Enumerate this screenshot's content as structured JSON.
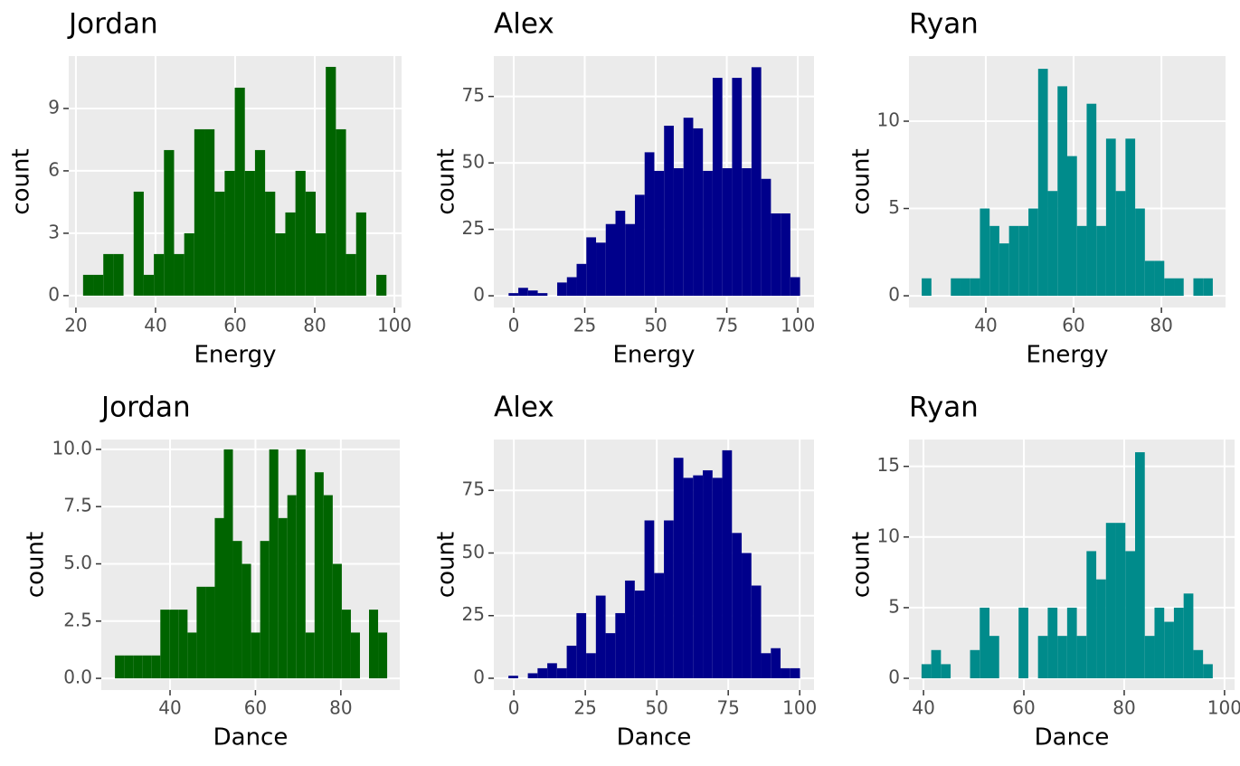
{
  "chart_data": [
    {
      "type": "histogram",
      "title": "Jordan",
      "x_label": "Energy",
      "y_label": "count",
      "color": "#006400",
      "grid": true,
      "bins": [
        21.8,
        24.34,
        26.88,
        29.42,
        31.96,
        34.5,
        37.04,
        39.58,
        42.12,
        44.66,
        47.2,
        49.74,
        52.28,
        54.82,
        57.36,
        59.9,
        62.44,
        64.98,
        67.52,
        70.06,
        72.6,
        75.14,
        77.68,
        80.22,
        82.76,
        85.3,
        87.84,
        90.38,
        92.92,
        95.46,
        98.0
      ],
      "counts": [
        1,
        1,
        2,
        2,
        0,
        5,
        1,
        2,
        7,
        2,
        3,
        8,
        8,
        5,
        6,
        10,
        6,
        7,
        5,
        3,
        4,
        6,
        5,
        3,
        11,
        8,
        2,
        4,
        0,
        1
      ],
      "xlim": [
        18.2,
        101.8
      ],
      "ylim": [
        -0.57,
        11.52
      ],
      "xticks": [
        20,
        40,
        60,
        80,
        100
      ],
      "yticks": [
        0,
        3,
        6,
        9
      ]
    },
    {
      "type": "histogram",
      "title": "Alex",
      "x_label": "Energy",
      "y_label": "count",
      "color": "#00008b",
      "grid": true,
      "bins": [
        -1.8,
        1.62,
        5.04,
        8.46,
        11.88,
        15.3,
        18.72,
        22.14,
        25.56,
        28.98,
        32.4,
        35.82,
        39.24,
        42.66,
        46.08,
        49.5,
        52.92,
        56.34,
        59.76,
        63.18,
        66.6,
        70.02,
        73.44,
        76.86,
        80.28,
        83.7,
        87.12,
        90.54,
        93.96,
        97.38,
        100.8
      ],
      "counts": [
        1,
        3,
        2,
        1,
        0,
        5,
        7,
        12,
        22,
        20,
        27,
        32,
        27,
        38,
        54,
        47,
        64,
        48,
        67,
        63,
        47,
        82,
        48,
        82,
        48,
        86,
        44,
        31,
        31,
        7
      ],
      "xlim": [
        -7,
        105.7
      ],
      "ylim": [
        -4.4,
        90.2
      ],
      "xticks": [
        0,
        25,
        50,
        75,
        100
      ],
      "yticks": [
        0,
        25,
        50,
        75
      ]
    },
    {
      "type": "histogram",
      "title": "Ryan",
      "x_label": "Energy",
      "y_label": "count",
      "color": "#008b8b",
      "grid": true,
      "bins": [
        25.4,
        27.61,
        29.82,
        32.03,
        34.24,
        36.45,
        38.66,
        40.87,
        43.08,
        45.29,
        47.5,
        49.71,
        51.92,
        54.13,
        56.34,
        58.55,
        60.76,
        62.97,
        65.18,
        67.39,
        69.6,
        71.81,
        74.02,
        76.23,
        78.44,
        80.65,
        82.86,
        85.07,
        87.28,
        89.49,
        91.7
      ],
      "counts": [
        1,
        0,
        0,
        1,
        1,
        1,
        5,
        4,
        3,
        4,
        4,
        5,
        13,
        6,
        12,
        8,
        4,
        11,
        4,
        9,
        6,
        9,
        5,
        2,
        2,
        1,
        1,
        0,
        1,
        1
      ],
      "xlim": [
        22.5,
        94.6
      ],
      "ylim": [
        -0.67,
        13.73
      ],
      "xticks": [
        40,
        60,
        80
      ],
      "yticks": [
        0,
        5,
        10
      ]
    },
    {
      "type": "histogram",
      "title": "Jordan",
      "x_label": "Dance",
      "y_label": "count",
      "color": "#006400",
      "grid": true,
      "bins": [
        27.1,
        29.225,
        31.35,
        33.475,
        35.6,
        37.725,
        39.85,
        41.975,
        44.1,
        46.225,
        48.35,
        50.475,
        52.6,
        54.725,
        56.85,
        58.975,
        61.1,
        63.225,
        65.35,
        67.475,
        69.6,
        71.725,
        73.85,
        75.975,
        78.1,
        80.225,
        82.35,
        84.475,
        86.6,
        88.725,
        90.85
      ],
      "counts": [
        1,
        1,
        1,
        1,
        1,
        3,
        3,
        3,
        2,
        4,
        4,
        7,
        10,
        6,
        5,
        2,
        6,
        10,
        7,
        8,
        10,
        2,
        9,
        8,
        5,
        3,
        2,
        0,
        3,
        2
      ],
      "xlim": [
        23.9,
        93.8
      ],
      "ylim": [
        -0.51,
        10.43
      ],
      "xticks": [
        40,
        60,
        80
      ],
      "yticks": [
        {
          "value": 0,
          "label": "0.0"
        },
        2.5,
        {
          "value": 5,
          "label": "5.0"
        },
        7.5,
        {
          "value": 10,
          "label": "10.0"
        }
      ]
    },
    {
      "type": "histogram",
      "title": "Alex",
      "x_label": "Dance",
      "y_label": "count",
      "color": "#00008b",
      "grid": true,
      "bins": [
        -1.9,
        1.5,
        4.9,
        8.3,
        11.7,
        15.1,
        18.5,
        21.9,
        25.3,
        28.7,
        32.1,
        35.5,
        38.9,
        42.3,
        45.7,
        49.1,
        52.5,
        55.9,
        59.3,
        62.7,
        66.1,
        69.5,
        72.9,
        76.3,
        79.7,
        83.1,
        86.5,
        89.9,
        93.3,
        96.7,
        100.1
      ],
      "counts": [
        1,
        0,
        2,
        4,
        6,
        4,
        13,
        26,
        10,
        33,
        18,
        26,
        39,
        35,
        63,
        42,
        63,
        88,
        80,
        81,
        83,
        80,
        91,
        58,
        50,
        37,
        10,
        12,
        4,
        4
      ],
      "xlim": [
        -7,
        105
      ],
      "ylim": [
        -4.7,
        95.3
      ],
      "xticks": [
        0,
        25,
        50,
        75,
        100
      ],
      "yticks": [
        0,
        25,
        50,
        75
      ]
    },
    {
      "type": "histogram",
      "title": "Ryan",
      "x_label": "Dance",
      "y_label": "count",
      "color": "#008b8b",
      "grid": true,
      "bins": [
        39.6,
        41.535,
        43.47,
        45.405,
        47.34,
        49.275,
        51.21,
        53.145,
        55.08,
        57.015,
        58.95,
        60.885,
        62.82,
        64.755,
        66.69,
        68.625,
        70.56,
        72.495,
        74.43,
        76.365,
        78.3,
        80.235,
        82.17,
        84.105,
        86.04,
        87.975,
        89.91,
        91.845,
        93.78,
        95.715,
        97.65
      ],
      "counts": [
        1,
        2,
        1,
        0,
        0,
        2,
        5,
        3,
        0,
        0,
        5,
        0,
        3,
        5,
        3,
        5,
        3,
        9,
        7,
        11,
        11,
        9,
        16,
        3,
        5,
        4,
        5,
        6,
        2,
        1
      ],
      "xlim": [
        37.1,
        102
      ],
      "ylim": [
        -0.83,
        16.9
      ],
      "xticks": [
        40,
        60,
        80,
        100
      ],
      "yticks": [
        0,
        5,
        10,
        15
      ]
    }
  ]
}
